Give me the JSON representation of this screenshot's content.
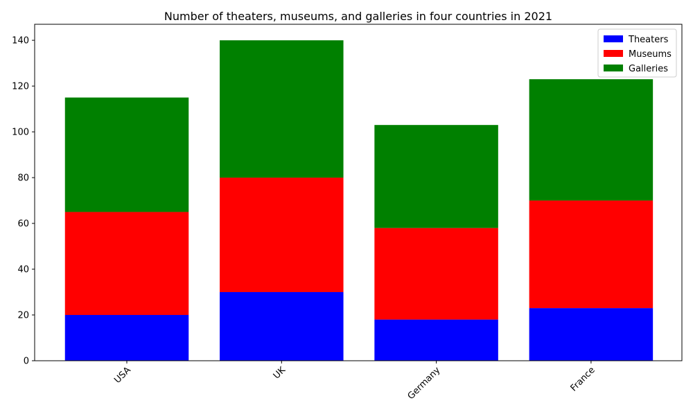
{
  "chart_data": {
    "type": "bar",
    "stacked": true,
    "title": "Number of theaters, museums, and galleries in four countries in 2021",
    "xlabel": "",
    "ylabel": "",
    "categories": [
      "USA",
      "UK",
      "Germany",
      "France"
    ],
    "series": [
      {
        "name": "Theaters",
        "color": "#0000ff",
        "values": [
          20,
          30,
          18,
          23
        ]
      },
      {
        "name": "Museums",
        "color": "#ff0000",
        "values": [
          45,
          50,
          40,
          47
        ]
      },
      {
        "name": "Galleries",
        "color": "#008000",
        "values": [
          50,
          60,
          45,
          53
        ]
      }
    ],
    "ylim": [
      0,
      147
    ],
    "yticks": [
      0,
      20,
      40,
      60,
      80,
      100,
      120,
      140
    ],
    "grid": false,
    "legend_position": "top-right"
  }
}
